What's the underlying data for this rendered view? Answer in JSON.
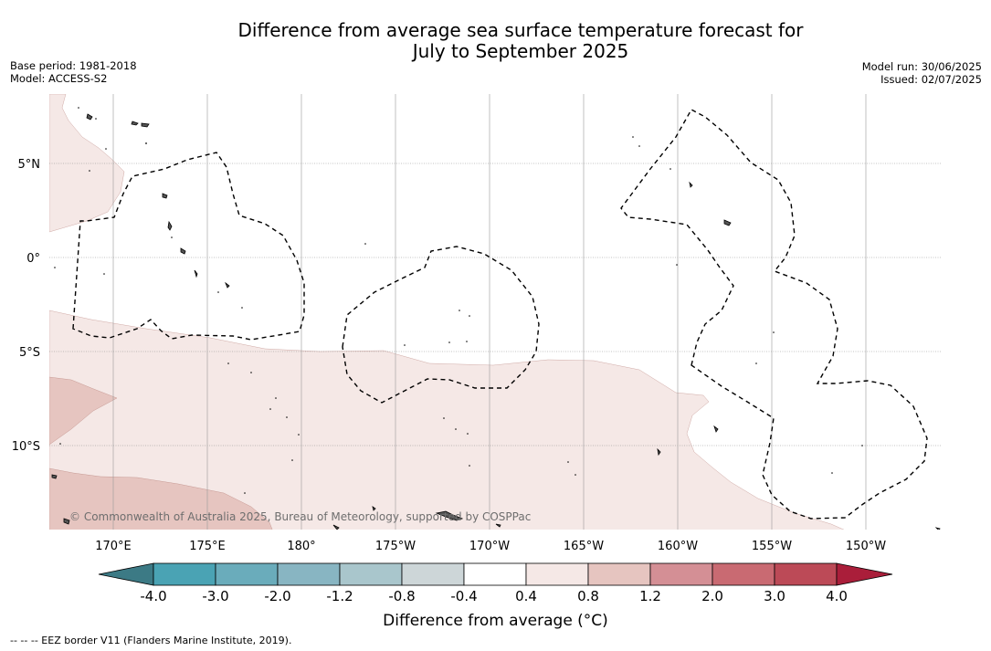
{
  "title": {
    "line1": "Difference from average sea surface temperature forecast for",
    "line2": "July to September 2025"
  },
  "meta_left": {
    "base_period": "Base period: 1981-2018",
    "model": "Model: ACCESS-S2"
  },
  "meta_right": {
    "model_run": "Model run: 30/06/2025",
    "issued": "Issued: 02/07/2025"
  },
  "map": {
    "lat_labels": [
      "5°N",
      "0°",
      "5°S",
      "10°S"
    ],
    "lon_labels": [
      "170°E",
      "175°E",
      "180°",
      "175°W",
      "170°W",
      "165°W",
      "160°W",
      "155°W",
      "150°W"
    ],
    "copyright": "© Commonwealth of Australia 2025, Bureau of Meteorology, supported by COSPPac",
    "colors": {
      "anom_0_4_0_8": "#f5e8e6",
      "anom_0_8_1_2": "#e6c5c0",
      "land": "#555555",
      "eez_border": "#000000"
    }
  },
  "colorbar": {
    "ticks": [
      "-4.0",
      "-3.0",
      "-2.0",
      "-1.2",
      "-0.8",
      "-0.4",
      "0.4",
      "0.8",
      "1.2",
      "2.0",
      "3.0",
      "4.0"
    ],
    "colors": [
      "#3c7a85",
      "#4aa3b4",
      "#6aacbb",
      "#88b5c2",
      "#a9c6cc",
      "#cdd6d8",
      "#ffffff",
      "#f5e8e6",
      "#e6c5c0",
      "#d48f95",
      "#c96a72",
      "#bc4a57",
      "#aa1e3a"
    ],
    "label": "Difference from average (°C)"
  },
  "legend": {
    "eez": "--  --  -- EEZ border V11 (Flanders Marine Institute, 2019)."
  }
}
